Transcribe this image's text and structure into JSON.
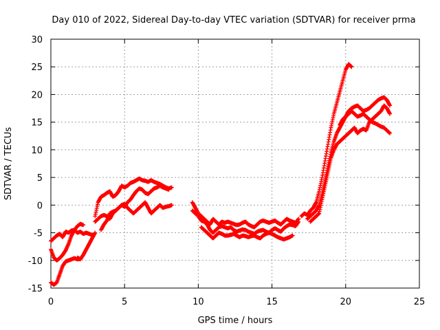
{
  "chart_data": {
    "type": "scatter",
    "title": "Day 010 of 2022, Sidereal Day-to-day VTEC variation (SDTVAR) for receiver prma",
    "xlabel": "GPS time / hours",
    "ylabel": "SDTVAR / TECUs",
    "xlim": [
      0,
      25
    ],
    "ylim": [
      -15,
      30
    ],
    "xticks": [
      0,
      5,
      10,
      15,
      20,
      25
    ],
    "yticks": [
      -15,
      -10,
      -5,
      0,
      5,
      10,
      15,
      20,
      25,
      30
    ],
    "grid": true,
    "legend": "none",
    "marker": "plus",
    "color": "#ff0000",
    "series": [
      {
        "x": [
          0.0,
          0.2,
          0.4,
          0.6,
          0.8,
          1.0,
          1.2,
          1.4,
          1.6,
          1.8,
          2.0,
          2.2,
          2.4,
          2.6,
          2.8
        ],
        "y": [
          -6.5,
          -6.0,
          -5.5,
          -5.2,
          -5.8,
          -4.8,
          -5.0,
          -4.6,
          -4.5,
          -5.0,
          -4.8,
          -5.2,
          -5.0,
          -5.2,
          -5.4
        ]
      },
      {
        "x": [
          0.0,
          0.2,
          0.4,
          0.6,
          0.8,
          1.0,
          1.2,
          1.4,
          1.6,
          1.8,
          2.0,
          2.2
        ],
        "y": [
          -8.0,
          -9.5,
          -10.0,
          -9.6,
          -9.0,
          -8.2,
          -7.0,
          -5.5,
          -4.5,
          -3.8,
          -3.4,
          -3.6
        ]
      },
      {
        "x": [
          0.0,
          0.2,
          0.4,
          0.6,
          0.8,
          1.0,
          1.2,
          1.4,
          1.6,
          1.8,
          2.0
        ],
        "y": [
          -14.0,
          -14.4,
          -14.0,
          -12.5,
          -11.0,
          -10.2,
          -10.0,
          -9.8,
          -9.6,
          -9.8,
          -9.7
        ]
      },
      {
        "x": [
          1.8,
          2.0,
          2.2,
          2.4,
          2.6,
          2.8,
          3.0
        ],
        "y": [
          -9.5,
          -9.8,
          -9.0,
          -8.0,
          -7.0,
          -6.0,
          -5.0
        ]
      },
      {
        "x": [
          3.0,
          3.2,
          3.4,
          3.6,
          3.8,
          4.0,
          4.2,
          4.4,
          4.6,
          4.8,
          5.0,
          5.2,
          5.4,
          5.6,
          5.8,
          6.0,
          6.2,
          6.4,
          6.6,
          6.8,
          7.0,
          7.2,
          7.4,
          7.6,
          7.8,
          8.0,
          8.2
        ],
        "y": [
          -2.0,
          0.5,
          1.5,
          1.8,
          2.2,
          2.5,
          1.5,
          1.8,
          2.5,
          3.5,
          3.2,
          3.5,
          4.0,
          4.2,
          4.5,
          4.8,
          4.5,
          4.4,
          4.2,
          4.5,
          4.2,
          4.0,
          3.8,
          3.5,
          3.2,
          3.0,
          3.2
        ]
      },
      {
        "x": [
          3.0,
          3.2,
          3.4,
          3.6,
          3.8,
          4.0,
          4.2,
          4.4,
          4.6,
          4.8,
          5.0,
          5.2,
          5.4,
          5.6,
          5.8,
          6.0,
          6.2,
          6.4,
          6.6,
          6.8,
          7.0,
          7.2,
          7.4,
          7.6,
          7.8,
          8.0
        ],
        "y": [
          -3.0,
          -2.5,
          -2.0,
          -1.8,
          -2.0,
          -2.5,
          -1.5,
          -1.0,
          -0.5,
          0.0,
          -0.3,
          0.5,
          1.0,
          1.8,
          2.5,
          3.0,
          2.8,
          2.2,
          2.0,
          2.5,
          3.0,
          3.2,
          3.5,
          3.2,
          3.0,
          2.8
        ]
      },
      {
        "x": [
          3.4,
          3.6,
          3.8,
          4.0,
          4.2,
          4.4,
          4.6,
          4.8,
          5.0,
          5.2,
          5.4,
          5.6,
          5.8,
          6.0,
          6.2,
          6.4,
          6.6,
          6.8,
          7.0,
          7.2,
          7.4,
          7.6,
          7.8,
          8.0,
          8.2
        ],
        "y": [
          -4.5,
          -3.5,
          -2.8,
          -1.5,
          -1.2,
          -1.0,
          -0.5,
          0.0,
          0.2,
          -0.5,
          -1.0,
          -1.5,
          -1.0,
          -0.5,
          0.0,
          0.5,
          -0.5,
          -1.5,
          -1.0,
          -0.5,
          0.0,
          -0.5,
          -0.3,
          -0.2,
          0.0
        ]
      },
      {
        "x": [
          9.6,
          9.8,
          10.0,
          10.2,
          10.4,
          10.6,
          10.8,
          11.0,
          11.2,
          11.4,
          11.6,
          11.8,
          12.0,
          12.2,
          12.4,
          12.6,
          12.8,
          13.0,
          13.2,
          13.4,
          13.6,
          13.8,
          14.0,
          14.2,
          14.4,
          14.6,
          14.8,
          15.0,
          15.2,
          15.4,
          15.6,
          15.8,
          16.0,
          16.2,
          16.4,
          16.6,
          16.8
        ],
        "y": [
          0.5,
          -0.5,
          -1.5,
          -2.0,
          -2.5,
          -3.0,
          -3.5,
          -2.5,
          -3.0,
          -3.5,
          -3.0,
          -3.2,
          -3.0,
          -3.2,
          -3.4,
          -3.6,
          -3.5,
          -3.2,
          -3.0,
          -3.5,
          -3.8,
          -4.0,
          -3.5,
          -3.0,
          -2.8,
          -3.0,
          -3.2,
          -3.0,
          -2.8,
          -3.2,
          -3.5,
          -3.0,
          -2.5,
          -2.8,
          -3.0,
          -3.2,
          -2.5
        ]
      },
      {
        "x": [
          9.6,
          9.8,
          10.0,
          10.2,
          10.4,
          10.6,
          10.8,
          11.0,
          11.2,
          11.4,
          11.6,
          11.8,
          12.0,
          12.2,
          12.4,
          12.6,
          12.8,
          13.0,
          13.2,
          13.4,
          13.6,
          13.8,
          14.0,
          14.2,
          14.4,
          14.6,
          14.8,
          15.0,
          15.2,
          15.4,
          15.6,
          15.8,
          16.0,
          16.2,
          16.4,
          16.6,
          16.8
        ],
        "y": [
          -1.0,
          -1.5,
          -2.0,
          -2.8,
          -3.0,
          -3.5,
          -4.5,
          -5.0,
          -4.5,
          -4.0,
          -3.8,
          -4.0,
          -4.2,
          -4.0,
          -4.5,
          -4.8,
          -4.6,
          -4.4,
          -4.5,
          -4.8,
          -5.0,
          -5.2,
          -4.8,
          -4.6,
          -4.5,
          -4.8,
          -5.0,
          -4.5,
          -4.2,
          -4.5,
          -4.8,
          -4.2,
          -3.8,
          -3.5,
          -3.6,
          -3.8,
          -3.0
        ]
      },
      {
        "x": [
          10.2,
          10.4,
          10.6,
          10.8,
          11.0,
          11.2,
          11.4,
          11.6,
          11.8,
          12.0,
          12.2,
          12.4,
          12.6,
          12.8,
          13.0,
          13.2,
          13.4,
          13.6,
          13.8,
          14.0,
          14.2,
          14.4,
          14.6,
          14.8,
          15.0,
          15.2,
          15.4,
          15.6,
          15.8,
          16.0,
          16.2,
          16.4
        ],
        "y": [
          -4.0,
          -4.5,
          -5.0,
          -5.5,
          -6.0,
          -5.5,
          -5.0,
          -5.2,
          -5.5,
          -5.5,
          -5.4,
          -5.2,
          -5.5,
          -5.8,
          -5.5,
          -5.6,
          -5.8,
          -5.6,
          -5.5,
          -5.8,
          -6.0,
          -5.5,
          -5.2,
          -5.0,
          -5.2,
          -5.5,
          -5.8,
          -6.0,
          -6.2,
          -6.0,
          -5.8,
          -5.5
        ]
      },
      {
        "x": [
          17.0,
          17.2,
          17.4,
          17.6,
          17.8,
          18.0,
          18.2,
          18.4,
          18.6,
          18.8,
          19.0,
          19.2,
          19.4,
          19.6,
          19.8,
          20.0,
          20.2,
          20.4
        ],
        "y": [
          -2.0,
          -1.5,
          -1.8,
          -1.0,
          -0.5,
          0.5,
          2.5,
          5.0,
          8.0,
          11.0,
          14.0,
          16.5,
          18.5,
          20.5,
          22.5,
          24.5,
          25.5,
          25.0
        ]
      },
      {
        "x": [
          17.4,
          17.6,
          17.8,
          18.0,
          18.2,
          18.4,
          18.6,
          18.8,
          19.0,
          19.2,
          19.4,
          19.6,
          19.8,
          20.0,
          20.2,
          20.4,
          20.6,
          20.8,
          21.0,
          21.2,
          21.4,
          21.6,
          21.8,
          22.0,
          22.2,
          22.4,
          22.6,
          22.8,
          23.0
        ],
        "y": [
          -2.5,
          -2.0,
          -1.5,
          -1.0,
          0.0,
          2.0,
          4.5,
          7.0,
          9.5,
          11.5,
          13.0,
          14.0,
          15.0,
          16.0,
          17.0,
          17.5,
          17.8,
          18.0,
          17.5,
          17.0,
          17.2,
          17.5,
          18.0,
          18.5,
          19.0,
          19.3,
          19.5,
          19.0,
          18.0
        ]
      },
      {
        "x": [
          17.6,
          17.8,
          18.0,
          18.2,
          18.4,
          18.6,
          18.8,
          19.0,
          19.2,
          19.4,
          19.6,
          19.8,
          20.0,
          20.2,
          20.4,
          20.6,
          20.8,
          21.0,
          21.2,
          21.4,
          21.6,
          21.8,
          22.0,
          22.2,
          22.4,
          22.6,
          22.8,
          23.0
        ],
        "y": [
          -3.0,
          -2.5,
          -2.0,
          -1.5,
          1.0,
          3.5,
          6.0,
          8.5,
          10.0,
          11.0,
          11.5,
          12.0,
          12.5,
          13.0,
          13.5,
          14.0,
          13.0,
          13.5,
          13.8,
          13.5,
          15.0,
          15.5,
          16.0,
          16.5,
          17.0,
          18.0,
          17.5,
          16.5
        ]
      },
      {
        "x": [
          19.6,
          19.8,
          20.0,
          20.2,
          20.4,
          20.6,
          20.8,
          21.0,
          21.2,
          21.4,
          21.6,
          21.8,
          22.0,
          22.2,
          22.4,
          22.6,
          22.8,
          23.0
        ],
        "y": [
          14.5,
          15.5,
          16.0,
          16.5,
          17.0,
          16.5,
          16.0,
          16.2,
          16.5,
          16.0,
          15.5,
          15.0,
          14.8,
          14.5,
          14.2,
          14.0,
          13.5,
          13.0
        ]
      }
    ]
  }
}
